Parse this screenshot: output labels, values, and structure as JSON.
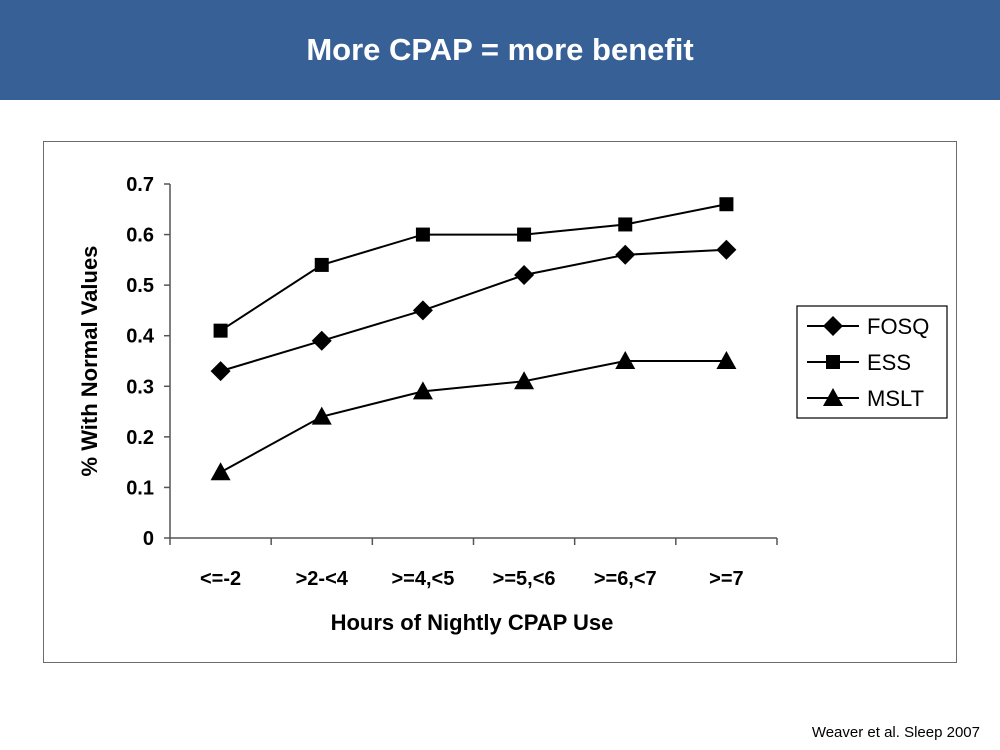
{
  "slide": {
    "title": "More CPAP = more benefit",
    "citation": "Weaver et al. Sleep 2007",
    "banner_color": "#376196"
  },
  "chart_data": {
    "type": "line",
    "title": "",
    "xlabel": "Hours of Nightly CPAP Use",
    "ylabel": "% With Normal Values",
    "categories": [
      "<=-2",
      ">2-<4",
      ">=4,<5",
      ">=5,<6",
      ">=6,<7",
      ">=7"
    ],
    "ylim": [
      0,
      0.7
    ],
    "yticks": [
      "0",
      "0.1",
      "0.2",
      "0.3",
      "0.4",
      "0.5",
      "0.6",
      "0.7"
    ],
    "grid": false,
    "legend_position": "right",
    "series": [
      {
        "name": "FOSQ",
        "marker": "diamond",
        "values": [
          0.33,
          0.39,
          0.45,
          0.52,
          0.56,
          0.57
        ]
      },
      {
        "name": "ESS",
        "marker": "square",
        "values": [
          0.41,
          0.54,
          0.6,
          0.6,
          0.62,
          0.66
        ]
      },
      {
        "name": "MSLT",
        "marker": "triangle",
        "values": [
          0.13,
          0.24,
          0.29,
          0.31,
          0.35,
          0.35
        ]
      }
    ]
  }
}
